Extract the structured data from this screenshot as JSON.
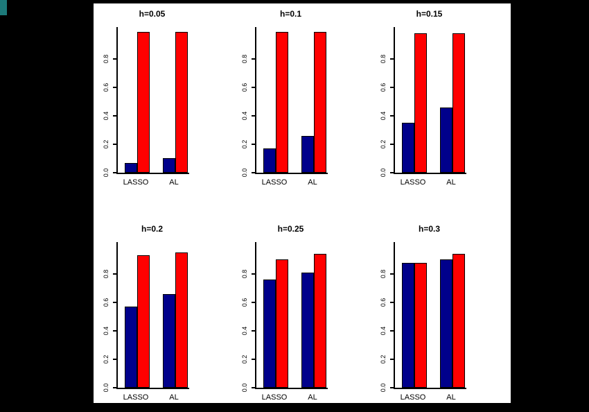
{
  "figure": {
    "background_color": "#000000",
    "panel_color": "#ffffff",
    "bar_blue_color": "#00008B",
    "bar_red_color": "#FF0000"
  },
  "chart_data": [
    {
      "type": "bar",
      "title": "h=0.05",
      "categories": [
        "LASSO",
        "AL"
      ],
      "series": [
        {
          "name": "blue",
          "color": "#00008B",
          "values": [
            0.07,
            0.1
          ]
        },
        {
          "name": "red",
          "color": "#FF0000",
          "values": [
            0.99,
            0.99
          ]
        }
      ],
      "xlabel": "",
      "ylabel": "",
      "ylim": [
        0,
        1.0
      ],
      "yticks": [
        0.0,
        0.2,
        0.4,
        0.6,
        0.8
      ],
      "ytick_labels": [
        "0.0",
        "0.2",
        "0.4",
        "0.6",
        "0.8"
      ],
      "grid": false,
      "legend": false
    },
    {
      "type": "bar",
      "title": "h=0.1",
      "categories": [
        "LASSO",
        "AL"
      ],
      "series": [
        {
          "name": "blue",
          "color": "#00008B",
          "values": [
            0.17,
            0.26
          ]
        },
        {
          "name": "red",
          "color": "#FF0000",
          "values": [
            0.99,
            0.99
          ]
        }
      ],
      "xlabel": "",
      "ylabel": "",
      "ylim": [
        0,
        1.0
      ],
      "yticks": [
        0.0,
        0.2,
        0.4,
        0.6,
        0.8
      ],
      "ytick_labels": [
        "0.0",
        "0.2",
        "0.4",
        "0.6",
        "0.8"
      ],
      "grid": false,
      "legend": false
    },
    {
      "type": "bar",
      "title": "h=0.15",
      "categories": [
        "LASSO",
        "AL"
      ],
      "series": [
        {
          "name": "blue",
          "color": "#00008B",
          "values": [
            0.35,
            0.46
          ]
        },
        {
          "name": "red",
          "color": "#FF0000",
          "values": [
            0.98,
            0.98
          ]
        }
      ],
      "xlabel": "",
      "ylabel": "",
      "ylim": [
        0,
        1.0
      ],
      "yticks": [
        0.0,
        0.2,
        0.4,
        0.6,
        0.8
      ],
      "ytick_labels": [
        "0.0",
        "0.2",
        "0.4",
        "0.6",
        "0.8"
      ],
      "grid": false,
      "legend": false
    },
    {
      "type": "bar",
      "title": "h=0.2",
      "categories": [
        "LASSO",
        "AL"
      ],
      "series": [
        {
          "name": "blue",
          "color": "#00008B",
          "values": [
            0.57,
            0.66
          ]
        },
        {
          "name": "red",
          "color": "#FF0000",
          "values": [
            0.93,
            0.95
          ]
        }
      ],
      "xlabel": "",
      "ylabel": "",
      "ylim": [
        0,
        1.0
      ],
      "yticks": [
        0.0,
        0.2,
        0.4,
        0.6,
        0.8
      ],
      "ytick_labels": [
        "0.0",
        "0.2",
        "0.4",
        "0.6",
        "0.8"
      ],
      "grid": false,
      "legend": false
    },
    {
      "type": "bar",
      "title": "h=0.25",
      "categories": [
        "LASSO",
        "AL"
      ],
      "series": [
        {
          "name": "blue",
          "color": "#00008B",
          "values": [
            0.76,
            0.81
          ]
        },
        {
          "name": "red",
          "color": "#FF0000",
          "values": [
            0.9,
            0.94
          ]
        }
      ],
      "xlabel": "",
      "ylabel": "",
      "ylim": [
        0,
        1.0
      ],
      "yticks": [
        0.0,
        0.2,
        0.4,
        0.6,
        0.8
      ],
      "ytick_labels": [
        "0.0",
        "0.2",
        "0.4",
        "0.6",
        "0.8"
      ],
      "grid": false,
      "legend": false
    },
    {
      "type": "bar",
      "title": "h=0.3",
      "categories": [
        "LASSO",
        "AL"
      ],
      "series": [
        {
          "name": "blue",
          "color": "#00008B",
          "values": [
            0.88,
            0.9
          ]
        },
        {
          "name": "red",
          "color": "#FF0000",
          "values": [
            0.88,
            0.94
          ]
        }
      ],
      "xlabel": "",
      "ylabel": "",
      "ylim": [
        0,
        1.0
      ],
      "yticks": [
        0.0,
        0.2,
        0.4,
        0.6,
        0.8
      ],
      "ytick_labels": [
        "0.0",
        "0.2",
        "0.4",
        "0.6",
        "0.8"
      ],
      "grid": false,
      "legend": false
    }
  ]
}
